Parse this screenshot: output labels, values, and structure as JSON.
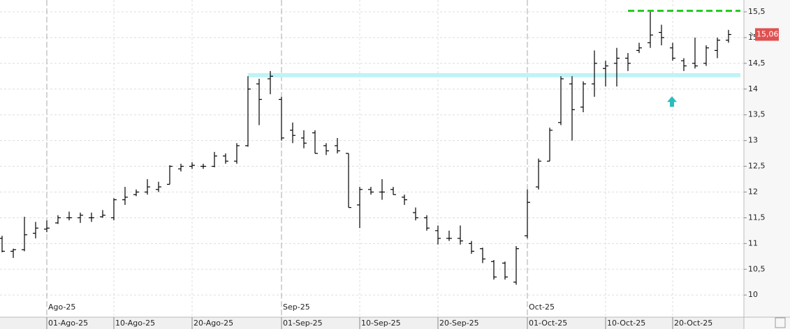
{
  "chart_data": {
    "type": "ohlc",
    "color": "#000000",
    "grid": true,
    "open": [
      11.1,
      10.85,
      10.88,
      11.2,
      11.28,
      11.4,
      11.5,
      11.5,
      11.5,
      11.52,
      11.5,
      11.85,
      11.95,
      12.0,
      12.05,
      12.15,
      12.45,
      12.5,
      12.5,
      12.5,
      12.7,
      12.6,
      12.9,
      14.1,
      14.2,
      13.8,
      13.2,
      13.05,
      13.15,
      12.9,
      12.9,
      12.75,
      11.75,
      12.05,
      12.0,
      12.05,
      11.9,
      11.6,
      11.5,
      11.25,
      11.1,
      11.1,
      11.0,
      10.9,
      10.65,
      10.62,
      10.25,
      11.15,
      12.1,
      12.6,
      13.35,
      14.1,
      13.65,
      14.1,
      14.4,
      14.5,
      14.6,
      14.75,
      14.9,
      15.1,
      14.8,
      14.55,
      14.5,
      14.5,
      14.75,
      14.95
    ],
    "high": [
      11.15,
      10.9,
      11.52,
      11.42,
      11.45,
      11.55,
      11.62,
      11.6,
      11.6,
      11.65,
      11.88,
      12.1,
      12.05,
      12.25,
      12.2,
      12.52,
      12.55,
      12.58,
      12.55,
      12.78,
      12.75,
      12.95,
      14.25,
      14.2,
      14.35,
      13.85,
      13.35,
      13.2,
      13.2,
      12.95,
      13.05,
      12.75,
      12.1,
      12.1,
      12.25,
      12.1,
      11.95,
      11.7,
      11.55,
      11.35,
      11.25,
      11.35,
      11.05,
      10.92,
      10.68,
      10.65,
      10.95,
      12.05,
      12.65,
      13.25,
      14.25,
      14.25,
      14.15,
      14.75,
      14.55,
      14.8,
      14.7,
      14.9,
      15.5,
      15.25,
      14.9,
      14.6,
      15.0,
      14.85,
      15.0,
      15.15
    ],
    "low": [
      10.83,
      10.72,
      10.85,
      11.1,
      11.22,
      11.38,
      11.45,
      11.4,
      11.42,
      11.5,
      11.45,
      11.75,
      11.92,
      11.95,
      12.0,
      12.15,
      12.4,
      12.45,
      12.45,
      12.48,
      12.55,
      12.55,
      12.88,
      13.3,
      13.9,
      13.0,
      12.95,
      12.85,
      12.75,
      12.72,
      12.75,
      11.7,
      11.3,
      11.95,
      11.85,
      11.95,
      11.75,
      11.45,
      11.25,
      10.98,
      11.05,
      10.98,
      10.8,
      10.62,
      10.3,
      10.3,
      10.2,
      11.1,
      12.05,
      12.6,
      13.3,
      13.0,
      13.55,
      13.85,
      14.05,
      14.05,
      14.35,
      14.7,
      14.8,
      14.85,
      14.55,
      14.35,
      14.4,
      14.45,
      14.6,
      14.9
    ],
    "close": [
      10.85,
      10.88,
      11.17,
      11.3,
      11.3,
      11.5,
      11.5,
      11.55,
      11.5,
      11.55,
      11.85,
      11.9,
      12.0,
      12.1,
      12.1,
      12.5,
      12.5,
      12.52,
      12.5,
      12.7,
      12.6,
      12.9,
      14.0,
      13.8,
      14.25,
      13.05,
      13.1,
      12.95,
      12.75,
      12.8,
      12.8,
      11.7,
      12.05,
      12.0,
      12.0,
      11.95,
      11.85,
      11.5,
      11.3,
      11.1,
      11.1,
      11.05,
      10.85,
      10.7,
      10.35,
      10.35,
      10.9,
      11.8,
      12.6,
      13.2,
      14.2,
      13.6,
      14.1,
      14.5,
      14.45,
      14.6,
      14.5,
      14.8,
      15.05,
      15.0,
      14.6,
      14.45,
      14.45,
      14.8,
      14.95,
      15.06
    ],
    "categories": [
      null,
      null,
      null,
      null,
      "01-Ago-25",
      null,
      null,
      null,
      null,
      null,
      "10-Ago-25",
      null,
      null,
      null,
      null,
      null,
      null,
      "20-Ago-25",
      null,
      null,
      null,
      null,
      null,
      null,
      null,
      "01-Sep-25",
      null,
      null,
      null,
      null,
      null,
      null,
      "10-Sep-25",
      null,
      null,
      null,
      null,
      null,
      null,
      "20-Sep-25",
      null,
      null,
      null,
      null,
      null,
      null,
      null,
      "01-Oct-25",
      null,
      null,
      null,
      null,
      null,
      null,
      "10-Oct-25",
      null,
      null,
      null,
      null,
      null,
      "20-Oct-25",
      null,
      null,
      null,
      null,
      null
    ],
    "months": [
      null,
      null,
      null,
      null,
      "Ago-25",
      null,
      null,
      null,
      null,
      null,
      null,
      null,
      null,
      null,
      null,
      null,
      null,
      null,
      null,
      null,
      null,
      null,
      null,
      null,
      null,
      "Sep-25",
      null,
      null,
      null,
      null,
      null,
      null,
      null,
      null,
      null,
      null,
      null,
      null,
      null,
      null,
      null,
      null,
      null,
      null,
      null,
      null,
      null,
      "Oct-25",
      null,
      null,
      null,
      null,
      null,
      null,
      null,
      null,
      null,
      null,
      null,
      null,
      null,
      null,
      null,
      null,
      null,
      null
    ],
    "ylim": [
      9.57,
      15.73
    ],
    "yticks": [
      10,
      {
        "value": 10.5,
        "label": "10,5"
      },
      11,
      {
        "value": 11.5,
        "label": "11,5"
      },
      12,
      {
        "value": 12.5,
        "label": "12,5"
      },
      13,
      {
        "value": 13.5,
        "label": "13,5"
      },
      14,
      {
        "value": 14.5,
        "label": "14,5"
      },
      15,
      {
        "value": 15.5,
        "label": "15,5"
      }
    ],
    "last_price": {
      "value": 15.06,
      "label": "15,06"
    },
    "levels": [
      {
        "value": 14.27,
        "color": "#bff3f5",
        "start": 22,
        "style": "solid"
      },
      {
        "value": 15.52,
        "color": "#22cc22",
        "start": 56,
        "style": "dashed"
      }
    ],
    "arrow": {
      "value": 13.75,
      "index": 60,
      "color": "#2cbcbc"
    }
  }
}
